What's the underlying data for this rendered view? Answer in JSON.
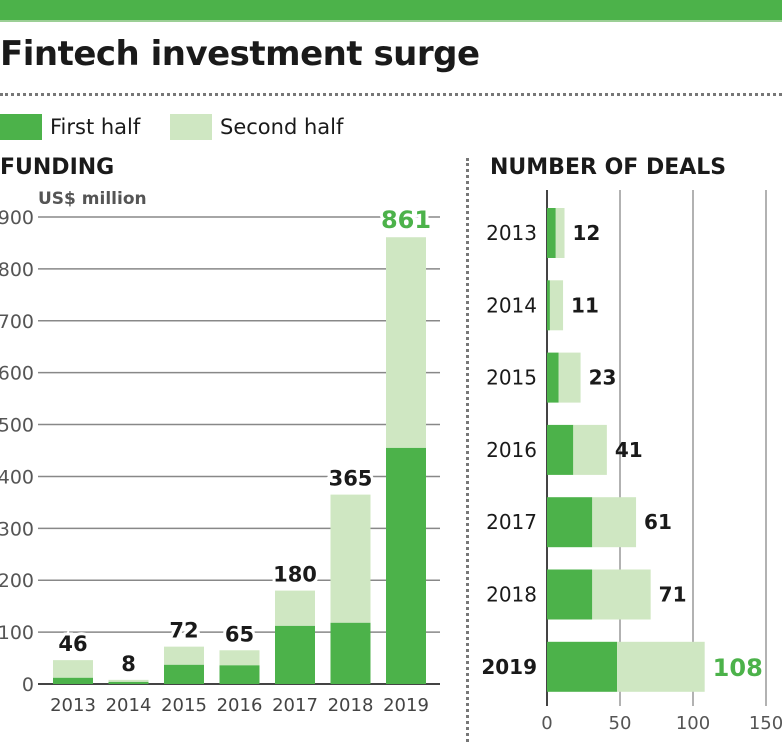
{
  "title": "Fintech investment surge",
  "legend": {
    "first_half": "First half",
    "second_half": "Second half"
  },
  "colors": {
    "first_half": "#4cb24a",
    "second_half": "#cfe7c2",
    "accent_label": "#4cb24a"
  },
  "chart_data": [
    {
      "type": "bar",
      "stacked": true,
      "orientation": "vertical",
      "title": "FUNDING",
      "ylabel": "US$ million",
      "categories": [
        "2013",
        "2014",
        "2015",
        "2016",
        "2017",
        "2018",
        "2019"
      ],
      "series": [
        {
          "name": "First half",
          "values": [
            12,
            4,
            37,
            36,
            112,
            118,
            455
          ]
        },
        {
          "name": "Second half",
          "values": [
            34,
            4,
            35,
            29,
            68,
            247,
            406
          ]
        }
      ],
      "totals": [
        "46",
        "8",
        "72",
        "65",
        "180",
        "365",
        "861"
      ],
      "ylim": [
        0,
        900
      ],
      "yticks": [
        0,
        100,
        200,
        300,
        400,
        500,
        600,
        700,
        800,
        900
      ],
      "grid": true,
      "highlight": "2019"
    },
    {
      "type": "bar",
      "stacked": true,
      "orientation": "horizontal",
      "title": "NUMBER OF DEALS",
      "categories": [
        "2013",
        "2014",
        "2015",
        "2016",
        "2017",
        "2018",
        "2019"
      ],
      "series": [
        {
          "name": "First half",
          "values": [
            6,
            2,
            8,
            18,
            31,
            31,
            48
          ]
        },
        {
          "name": "Second half",
          "values": [
            6,
            9,
            15,
            23,
            30,
            40,
            60
          ]
        }
      ],
      "totals": [
        "12",
        "11",
        "23",
        "41",
        "61",
        "71",
        "108"
      ],
      "xlim": [
        0,
        150
      ],
      "xticks": [
        0,
        50,
        100,
        150
      ],
      "grid": true,
      "highlight": "2019"
    }
  ]
}
